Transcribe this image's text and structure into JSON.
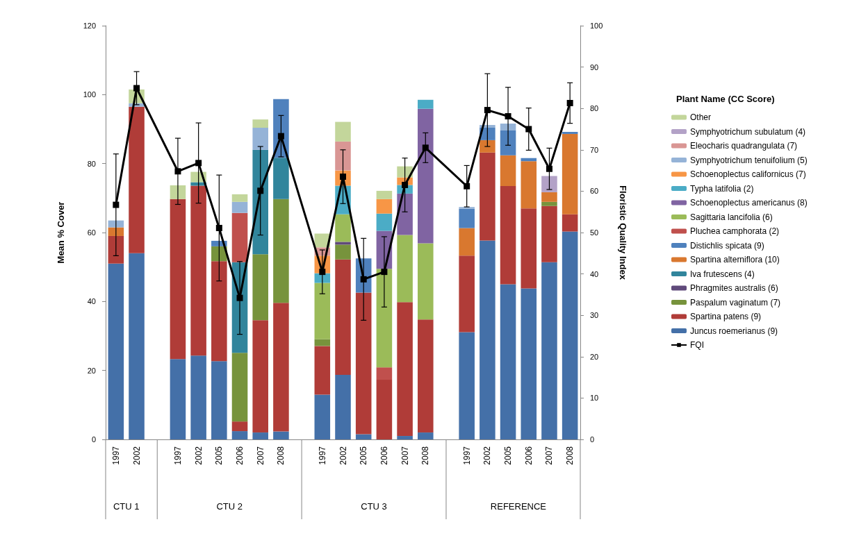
{
  "chart_data": {
    "type": "bar",
    "stacked": true,
    "xlabel": null,
    "ylabel": "Mean % Cover",
    "y2label": "Floristic Quality Index",
    "legend_title": "Plant Name (CC Score)",
    "legend": "right",
    "grid": false,
    "categories": [
      "1997",
      "2002",
      null,
      "1997",
      "2002",
      "2005",
      "2006",
      "2007",
      "2008",
      null,
      "1997",
      "2002",
      "2005",
      "2006",
      "2007",
      "2008",
      null,
      "1997",
      "2002",
      "2005",
      "2006",
      "2007",
      "2008"
    ],
    "annotations": [
      "CTU 1",
      "CTU 2",
      "CTU 3",
      "REFERENCE"
    ],
    "ylim": [
      0,
      120
    ],
    "yticks": [
      0,
      20,
      40,
      60,
      80,
      100,
      120
    ],
    "y2lim": [
      0,
      100
    ],
    "y2ticks": [
      0,
      10,
      20,
      30,
      40,
      50,
      60,
      70,
      80,
      90,
      100
    ],
    "series": [
      {
        "name": "Juncus roemerianus (9)",
        "color": "#4470a8",
        "values": [
          51,
          54,
          null,
          23.3,
          24.3,
          22.7,
          2.4,
          2,
          2.3,
          null,
          13,
          18.7,
          1.5,
          null,
          1,
          2,
          null,
          31.1,
          57.7,
          45,
          43.8,
          51.4,
          60.3
        ]
      },
      {
        "name": "Spartina patens (9)",
        "color": "#b03c38",
        "values": [
          8,
          42.5,
          null,
          46.4,
          49.3,
          29,
          2.8,
          32.6,
          37.3,
          null,
          14.1,
          33.5,
          41.1,
          17.3,
          38.8,
          32.8,
          null,
          22.2,
          25.5,
          28.5,
          23.2,
          16.3,
          5
        ]
      },
      {
        "name": "Paspalum vaginatum (7)",
        "color": "#77933c",
        "values": [
          null,
          null,
          null,
          null,
          null,
          4.3,
          19.9,
          19.1,
          30.1,
          null,
          2,
          4.3,
          null,
          null,
          null,
          null,
          null,
          null,
          null,
          null,
          null,
          1.2,
          null
        ]
      },
      {
        "name": "Phragmites australis (6)",
        "color": "#604a7b",
        "values": [
          null,
          null,
          null,
          null,
          null,
          null,
          null,
          null,
          null,
          null,
          null,
          0.8,
          null,
          null,
          null,
          null,
          null,
          null,
          null,
          null,
          null,
          null,
          null
        ]
      },
      {
        "name": "Iva frutescens (4)",
        "color": "#31859c",
        "values": [
          null,
          null,
          null,
          null,
          1,
          null,
          26.3,
          30.3,
          12,
          null,
          null,
          null,
          null,
          null,
          null,
          null,
          null,
          null,
          null,
          null,
          null,
          null,
          null
        ]
      },
      {
        "name": "Spartina alterniflora (10)",
        "color": "#d9782f",
        "values": [
          2.5,
          null,
          null,
          null,
          null,
          null,
          null,
          null,
          null,
          null,
          null,
          null,
          null,
          null,
          null,
          null,
          null,
          8,
          3.6,
          8.9,
          13.7,
          2.8,
          23.3
        ]
      },
      {
        "name": "Distichlis spicata (9)",
        "color": "#4f81bd",
        "values": [
          null,
          null,
          null,
          null,
          null,
          1.6,
          null,
          null,
          17,
          null,
          null,
          null,
          9.9,
          null,
          null,
          null,
          null,
          5.6,
          3.6,
          7.2,
          0.9,
          null,
          0.6
        ]
      },
      {
        "name": "Pluchea camphorata (2)",
        "color": "#c0504d",
        "values": [
          null,
          null,
          null,
          null,
          null,
          null,
          14.3,
          null,
          null,
          null,
          null,
          null,
          null,
          3.6,
          null,
          null,
          null,
          null,
          null,
          null,
          null,
          null,
          null
        ]
      },
      {
        "name": "Sagittaria lancifolia (6)",
        "color": "#9bbb59",
        "values": [
          null,
          null,
          null,
          null,
          null,
          null,
          null,
          null,
          null,
          null,
          16.3,
          8,
          null,
          28.6,
          19.5,
          22.1,
          null,
          null,
          null,
          null,
          null,
          null,
          null
        ]
      },
      {
        "name": "Schoenoplectus americanus (8)",
        "color": "#8064a2",
        "values": [
          null,
          null,
          null,
          null,
          null,
          null,
          null,
          null,
          null,
          null,
          null,
          null,
          null,
          11,
          12,
          39,
          null,
          null,
          null,
          null,
          null,
          null,
          null
        ]
      },
      {
        "name": "Typha latifolia (2)",
        "color": "#4bacc6",
        "values": [
          null,
          null,
          null,
          null,
          null,
          null,
          null,
          null,
          null,
          null,
          2.8,
          8.3,
          null,
          5,
          2.5,
          2.6,
          null,
          null,
          null,
          null,
          null,
          null,
          null
        ]
      },
      {
        "name": "Schoenoplectus californicus (7)",
        "color": "#f79646",
        "values": [
          null,
          null,
          null,
          null,
          null,
          null,
          null,
          null,
          null,
          null,
          5.1,
          4.4,
          null,
          4.2,
          2.2,
          null,
          null,
          null,
          null,
          null,
          null,
          null,
          null
        ]
      },
      {
        "name": "Symphyotrichum tenuifolium (5)",
        "color": "#95b3d7",
        "values": [
          2,
          1,
          null,
          null,
          null,
          null,
          3.2,
          6.4,
          null,
          null,
          null,
          null,
          null,
          null,
          null,
          null,
          null,
          0.5,
          0.8,
          2,
          null,
          null,
          null
        ]
      },
      {
        "name": "Eleocharis quadrangulata (7)",
        "color": "#d99694",
        "values": [
          null,
          null,
          null,
          null,
          null,
          null,
          null,
          null,
          null,
          null,
          2.4,
          8.4,
          null,
          null,
          null,
          null,
          null,
          null,
          null,
          null,
          null,
          null,
          null
        ]
      },
      {
        "name": "Symphyotrichum subulatum (4)",
        "color": "#b3a2c7",
        "values": [
          null,
          null,
          null,
          null,
          null,
          null,
          null,
          null,
          null,
          null,
          null,
          null,
          null,
          null,
          null,
          null,
          null,
          null,
          null,
          null,
          null,
          4.7,
          null
        ]
      },
      {
        "name": "Other",
        "color": "#c3d69b",
        "values": [
          null,
          4,
          null,
          4,
          3,
          null,
          2.2,
          2.4,
          null,
          null,
          4,
          5.7,
          null,
          2.4,
          3.2,
          null,
          null,
          null,
          null,
          null,
          null,
          null,
          null
        ]
      },
      {
        "name": "FQI",
        "type": "line",
        "axis": "y2",
        "color": "#000000",
        "marker": "square",
        "line_style": "solid",
        "values": [
          56.7,
          84.9,
          null,
          64.8,
          66.8,
          51.1,
          34.2,
          60.1,
          73.3,
          null,
          40.5,
          63.5,
          38.7,
          40.5,
          61.5,
          70.5,
          null,
          61.2,
          79.6,
          78.1,
          75.0,
          65.4,
          81.3
        ],
        "errors": [
          12.3,
          4,
          null,
          8,
          9.7,
          12.8,
          8.8,
          10.7,
          5,
          null,
          5.3,
          6.5,
          9.9,
          8.5,
          6.5,
          3.6,
          null,
          5,
          8.8,
          7,
          5.1,
          5,
          4.9
        ]
      }
    ]
  }
}
